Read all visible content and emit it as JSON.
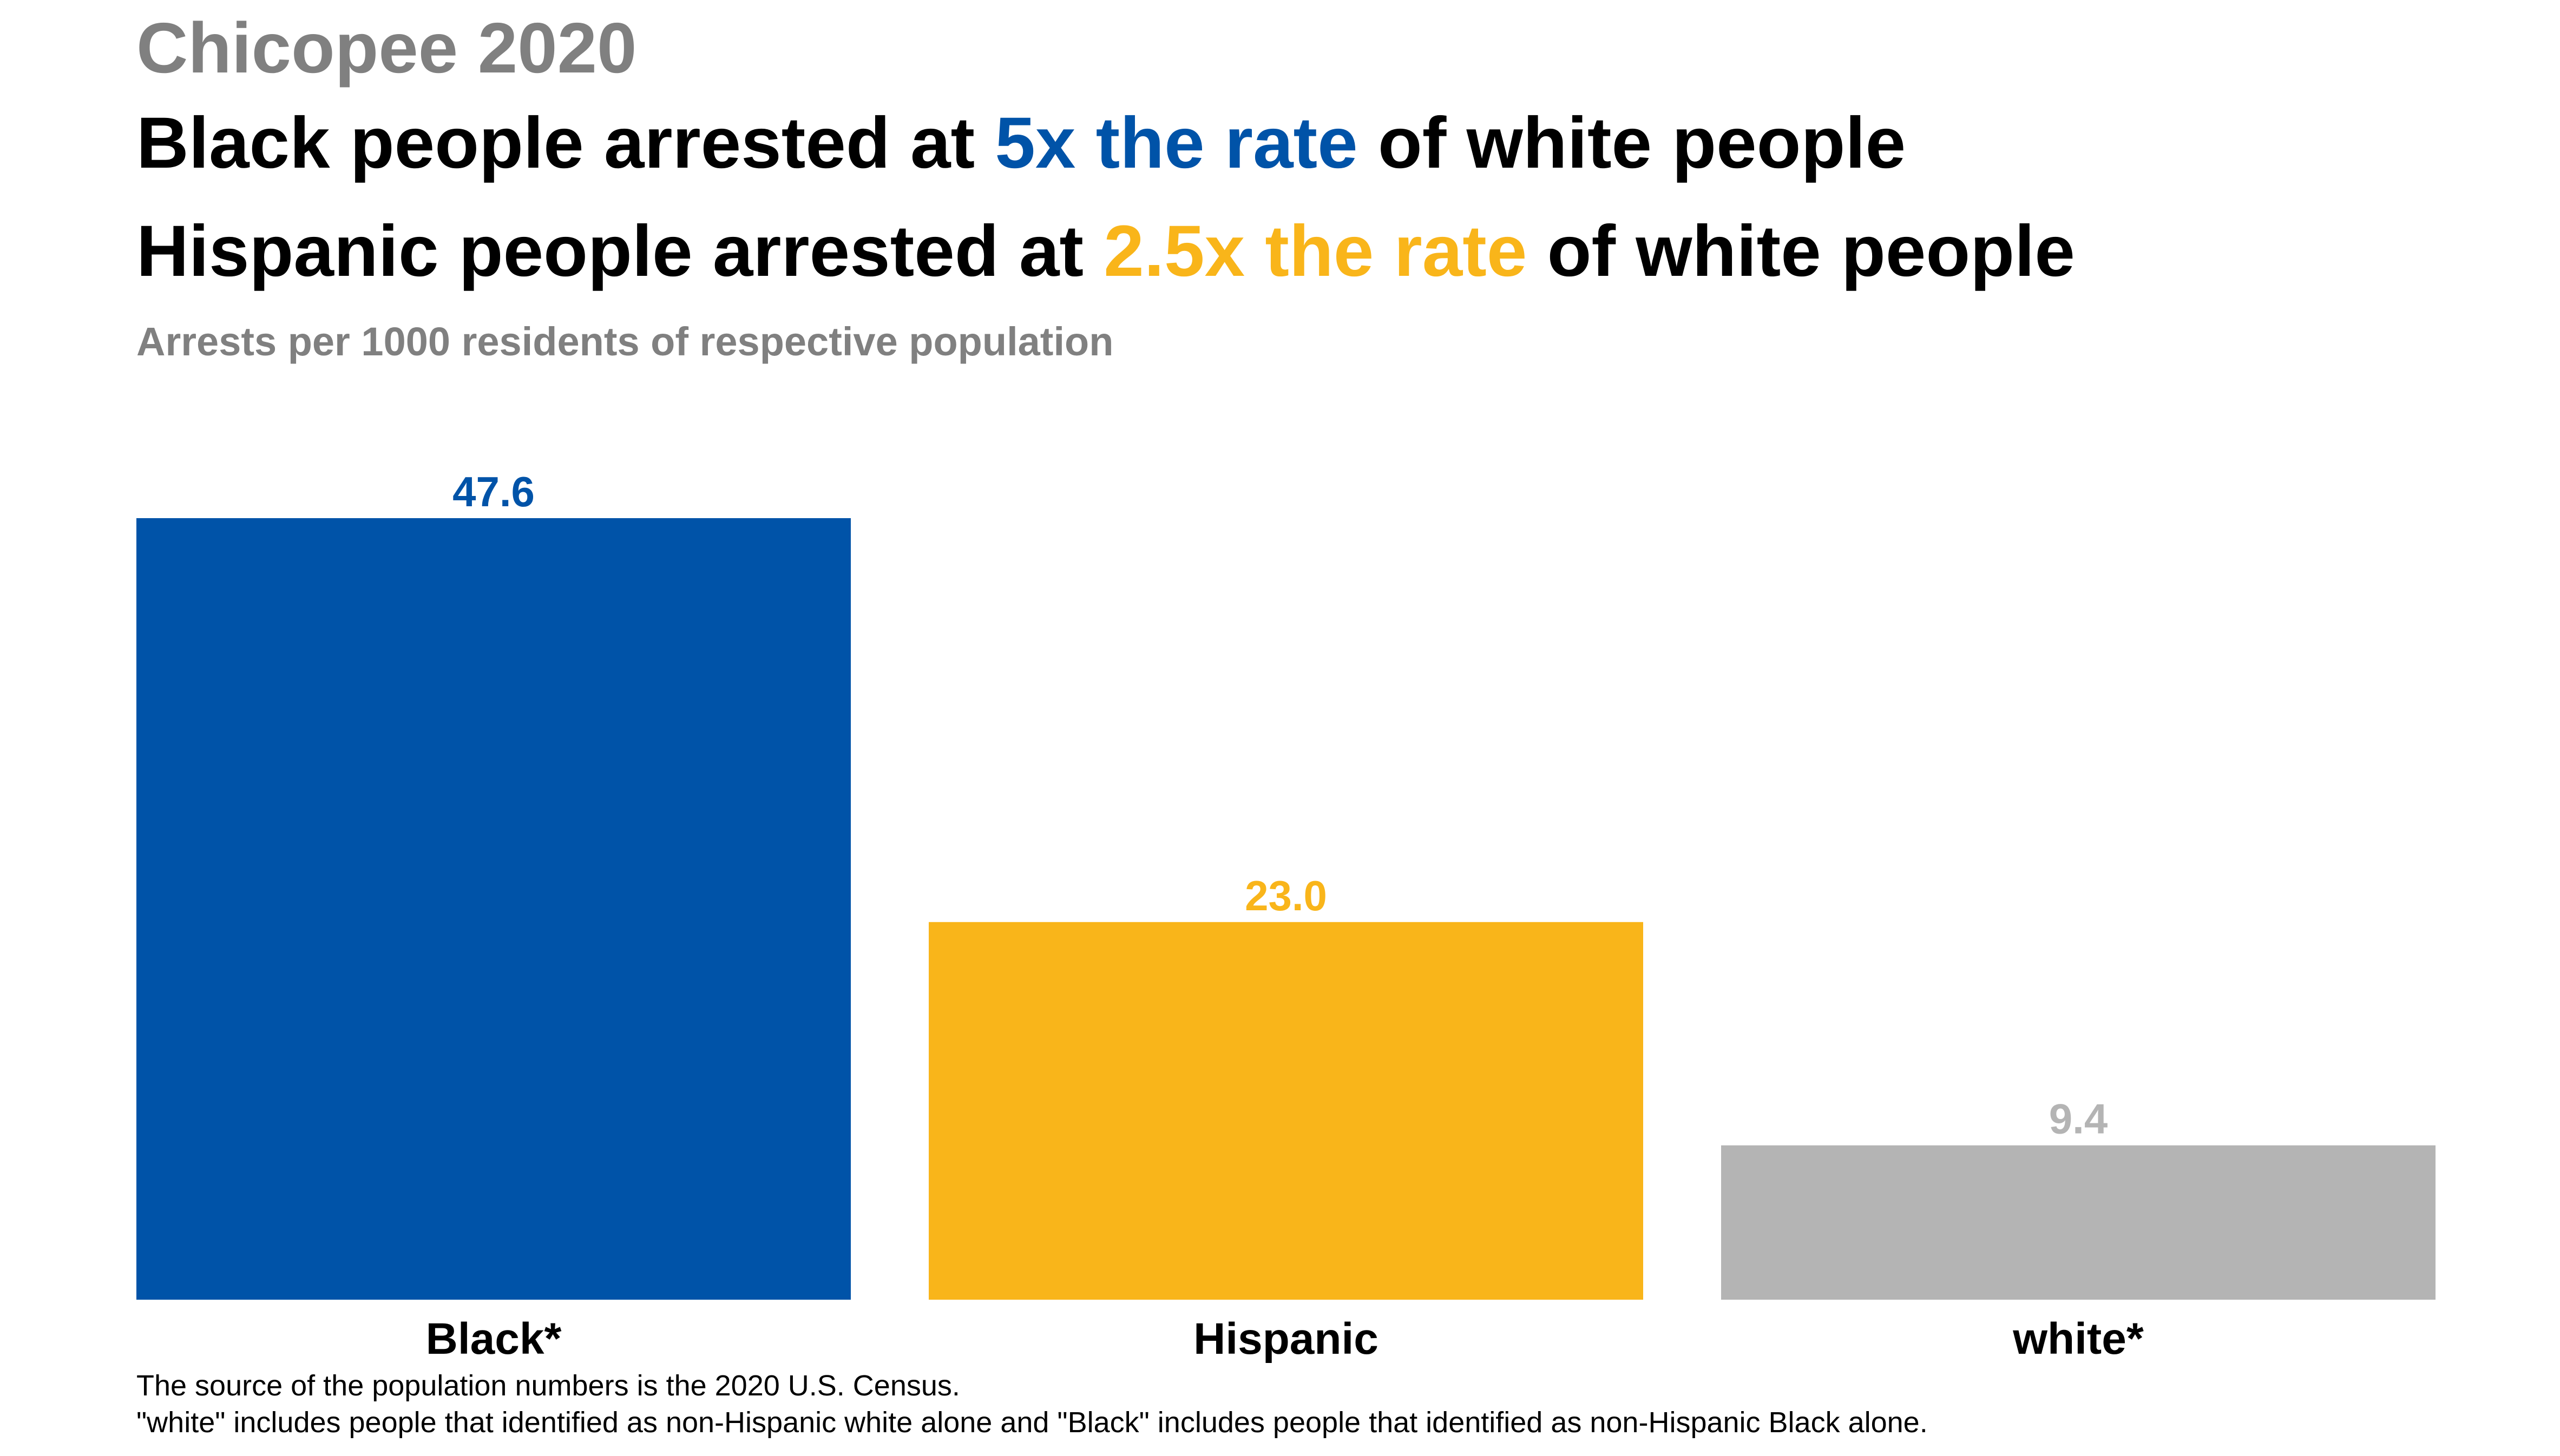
{
  "header": {
    "kicker": "Chicopee 2020",
    "line1": {
      "before": "Black people arrested at ",
      "highlight": "5x the rate",
      "after": " of white people"
    },
    "line2": {
      "before": "Hispanic people arrested at ",
      "highlight": "2.5x the rate",
      "after": " of white people"
    },
    "subtitle": "Arrests per 1000 residents of respective population"
  },
  "colors": {
    "black_series": "#0053A8",
    "hispanic_series": "#F9B51A",
    "white_series": "#B4B4B4",
    "kicker": "#808080",
    "text": "#000000"
  },
  "chart_data": {
    "type": "bar",
    "categories": [
      "Black*",
      "Hispanic",
      "white*"
    ],
    "values": [
      47.6,
      23.0,
      9.4
    ],
    "value_labels": [
      "47.6",
      "23.0",
      "9.4"
    ],
    "colors": [
      "#0053A8",
      "#F9B51A",
      "#B4B4B4"
    ],
    "label_colors": [
      "#0053A8",
      "#F9B51A",
      "#B4B4B4"
    ],
    "ylabel": "Arrests per 1000 residents of respective population",
    "ylim": [
      0,
      47.6
    ],
    "grid": false,
    "legend": "none"
  },
  "footnotes": {
    "line1": "The source of the population numbers is the 2020 U.S. Census.",
    "line2": "\"white\" includes people that identified as non-Hispanic white alone and \"Black\" includes people that identified as non-Hispanic Black alone."
  }
}
